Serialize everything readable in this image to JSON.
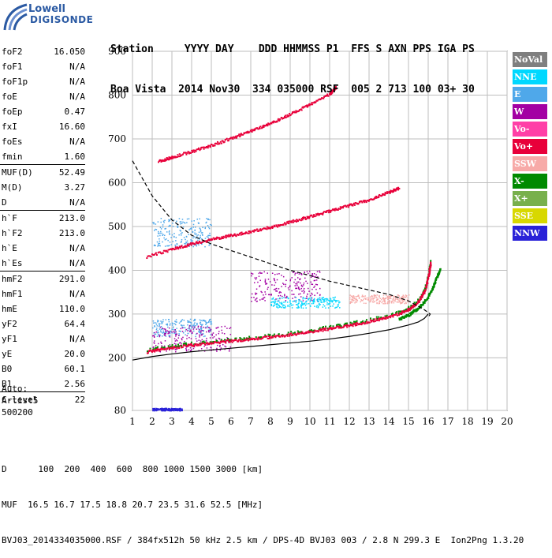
{
  "logo": {
    "line1": "Lowell",
    "line2": "DIGISONDE"
  },
  "header": {
    "line1": "Station     YYYY DAY    DDD HHMMSS P1  FFS S AXN PPS IGA PS",
    "line2": "Boa Vista  2014 Nov30  334 035000 RSF  005 2 713 100 03+ 30"
  },
  "params": [
    {
      "name": "foF2",
      "value": "16.050"
    },
    {
      "name": "foF1",
      "value": "N/A"
    },
    {
      "name": "foF1p",
      "value": "N/A"
    },
    {
      "name": "foE",
      "value": "N/A"
    },
    {
      "name": "foEp",
      "value": "0.47"
    },
    {
      "name": "fxI",
      "value": "16.60"
    },
    {
      "name": "foEs",
      "value": "N/A"
    },
    {
      "name": "fmin",
      "value": "1.60"
    },
    {
      "name": "MUF(D)",
      "value": "52.49",
      "sep": true
    },
    {
      "name": "M(D)",
      "value": "3.27"
    },
    {
      "name": "D",
      "value": "N/A"
    },
    {
      "name": "h`F",
      "value": "213.0",
      "sep": true
    },
    {
      "name": "h`F2",
      "value": "213.0"
    },
    {
      "name": "h`E",
      "value": "N/A"
    },
    {
      "name": "h`Es",
      "value": "N/A"
    },
    {
      "name": "hmF2",
      "value": "291.0",
      "sep": true
    },
    {
      "name": "hmF1",
      "value": "N/A"
    },
    {
      "name": "hmE",
      "value": "110.0"
    },
    {
      "name": "yF2",
      "value": "64.4"
    },
    {
      "name": "yF1",
      "value": "N/A"
    },
    {
      "name": "yE",
      "value": "20.0"
    },
    {
      "name": "B0",
      "value": "60.1"
    },
    {
      "name": "B1",
      "value": "2.56"
    },
    {
      "name": "C-level",
      "value": "22",
      "sep": true
    }
  ],
  "auto": {
    "line1": "Auto:",
    "line2": "Artist5",
    "line3": "500200"
  },
  "footer": {
    "line1": "D      100  200  400  600  800 1000 1500 3000 [km]",
    "line2": "MUF  16.5 16.7 17.5 18.8 20.7 23.5 31.6 52.5 [MHz]",
    "line3": "BVJ03_2014334035000.RSF / 384fx512h 50 kHz 2.5 km / DPS-4D BVJ03 003 / 2.8 N 299.3 E  Ion2Png 1.3.20"
  },
  "legend": [
    {
      "label": "NoVal",
      "color": "#7f7f7f"
    },
    {
      "label": "NNE",
      "color": "#00d8ff"
    },
    {
      "label": "E",
      "color": "#4fa8ea"
    },
    {
      "label": "W",
      "color": "#a300a3"
    },
    {
      "label": "Vo-",
      "color": "#ff3fa7"
    },
    {
      "label": "Vo+",
      "color": "#e8003a"
    },
    {
      "label": "SSW",
      "color": "#f7aaa8"
    },
    {
      "label": "X-",
      "color": "#008a00"
    },
    {
      "label": "X+",
      "color": "#78b04c"
    },
    {
      "label": "SSE",
      "color": "#d8d800"
    },
    {
      "label": "NNW",
      "color": "#2a22d8"
    }
  ],
  "chart_data": {
    "type": "scatter",
    "xlabel": "",
    "ylabel": "",
    "xlim": [
      1,
      20
    ],
    "ylim": [
      80,
      900
    ],
    "x_ticks": [
      1,
      2,
      3,
      4,
      5,
      6,
      7,
      8,
      9,
      10,
      11,
      12,
      13,
      14,
      15,
      16,
      17,
      18,
      19,
      20
    ],
    "y_ticks": [
      80,
      200,
      300,
      400,
      500,
      600,
      700,
      800,
      900
    ],
    "grid": true,
    "series": [
      {
        "name": "Vo+",
        "color": "#e8003a",
        "role": "O-trace",
        "x": [
          1.7,
          2.5,
          3.5,
          4.5,
          5.5,
          6.5,
          7.5,
          8.5,
          9.5,
          10.5,
          11.5,
          12.5,
          13.5,
          14.5,
          15.0,
          15.5,
          15.8,
          16.0,
          16.1
        ],
        "y": [
          215,
          222,
          228,
          233,
          238,
          242,
          247,
          252,
          258,
          265,
          272,
          280,
          290,
          302,
          312,
          330,
          355,
          390,
          420
        ]
      },
      {
        "name": "Vo+",
        "color": "#e8003a",
        "role": "second-hop",
        "x": [
          1.7,
          3,
          4,
          5,
          6,
          7,
          8,
          9,
          10,
          11,
          12,
          13,
          14,
          14.5
        ],
        "y": [
          432,
          450,
          462,
          472,
          481,
          490,
          500,
          512,
          524,
          537,
          550,
          562,
          580,
          590
        ]
      },
      {
        "name": "Vo+",
        "color": "#e8003a",
        "role": "third-hop",
        "x": [
          2.3,
          3,
          4,
          5,
          6,
          7,
          8,
          9,
          10,
          11,
          11.3
        ],
        "y": [
          650,
          660,
          673,
          687,
          703,
          720,
          738,
          758,
          780,
          805,
          820
        ]
      },
      {
        "name": "X-",
        "color": "#008a00",
        "role": "X-trace",
        "x": [
          14.5,
          15.0,
          15.5,
          15.9,
          16.2,
          16.4,
          16.6
        ],
        "y": [
          290,
          300,
          316,
          335,
          360,
          385,
          405
        ]
      },
      {
        "name": "",
        "color": "#000000",
        "role": "profile-solid",
        "x": [
          1,
          2,
          3,
          4,
          5,
          6,
          7,
          8,
          9,
          10,
          11,
          12,
          13,
          14,
          15,
          15.5,
          15.8,
          16.0
        ],
        "y": [
          195,
          203,
          209,
          214,
          218,
          222,
          226,
          230,
          234,
          238,
          243,
          249,
          256,
          264,
          275,
          282,
          290,
          300
        ]
      },
      {
        "name": "",
        "color": "#000000",
        "role": "profile-dashed",
        "x": [
          1,
          2,
          3,
          4,
          5,
          6,
          7,
          8,
          9,
          10,
          11,
          12,
          13,
          14,
          15,
          15.8,
          16.1,
          16.0
        ],
        "y": [
          650,
          570,
          515,
          480,
          460,
          445,
          430,
          415,
          400,
          388,
          375,
          365,
          355,
          345,
          330,
          310,
          300,
          292
        ]
      }
    ],
    "clusters": [
      {
        "name": "W",
        "color": "#a300a3",
        "x": [
          7,
          10.5
        ],
        "y": [
          330,
          400
        ]
      },
      {
        "name": "NNE",
        "color": "#00d8ff",
        "x": [
          8,
          11.5
        ],
        "y": [
          315,
          340
        ]
      },
      {
        "name": "SSW",
        "color": "#f7aaa8",
        "x": [
          12,
          15
        ],
        "y": [
          325,
          345
        ]
      },
      {
        "name": "E",
        "color": "#4fa8ea",
        "x": [
          2,
          5
        ],
        "y": [
          250,
          290
        ]
      },
      {
        "name": "W",
        "color": "#a300a3",
        "x": [
          2,
          6
        ],
        "y": [
          215,
          275
        ]
      },
      {
        "name": "NNW",
        "color": "#2a22d8",
        "x": [
          2,
          3.5
        ],
        "y": [
          80,
          86
        ]
      },
      {
        "name": "E",
        "color": "#4fa8ea",
        "x": [
          2,
          5
        ],
        "y": [
          455,
          520
        ]
      }
    ]
  }
}
